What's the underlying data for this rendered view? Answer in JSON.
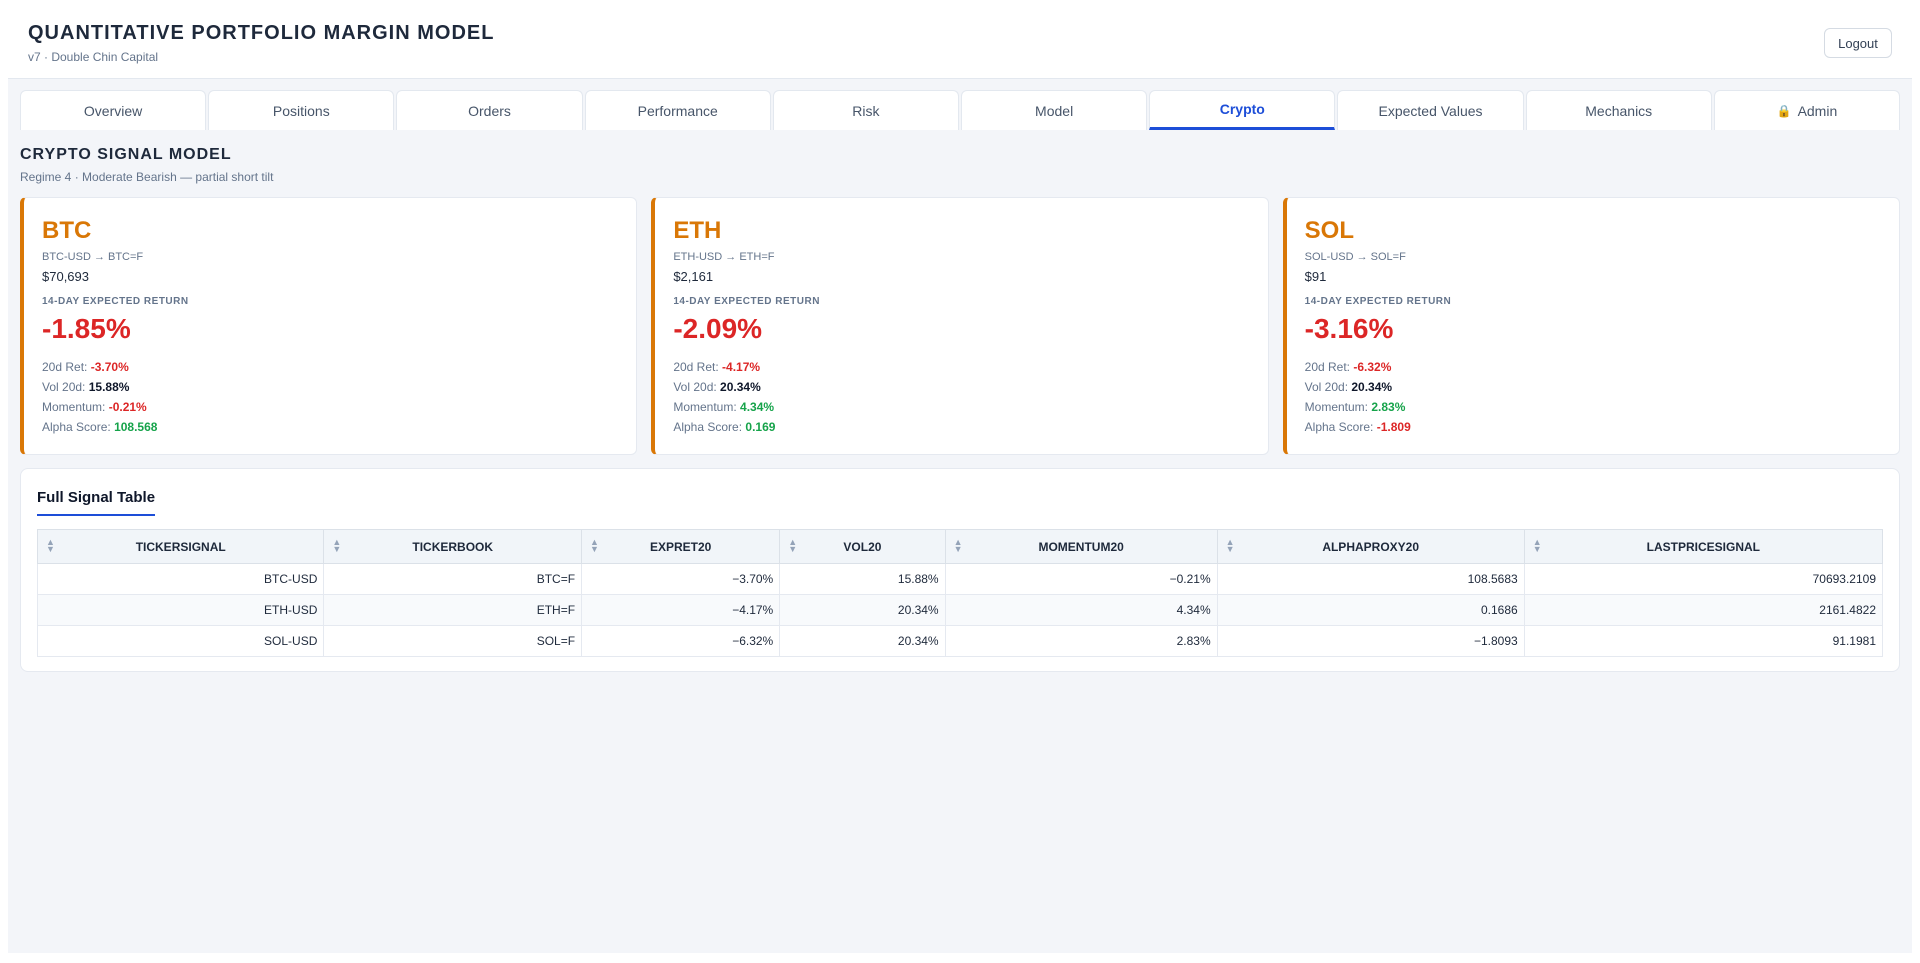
{
  "header": {
    "title": "QUANTITATIVE PORTFOLIO MARGIN MODEL",
    "subtitle": "v7 · Double Chin Capital",
    "logout_label": "Logout"
  },
  "tabs": [
    {
      "label": "Overview"
    },
    {
      "label": "Positions"
    },
    {
      "label": "Orders"
    },
    {
      "label": "Performance"
    },
    {
      "label": "Risk"
    },
    {
      "label": "Model"
    },
    {
      "label": "Crypto",
      "active": true
    },
    {
      "label": "Expected Values"
    },
    {
      "label": "Mechanics"
    },
    {
      "label": "Admin",
      "icon": "lock-icon"
    }
  ],
  "section": {
    "title": "CRYPTO SIGNAL MODEL",
    "subtitle": "Regime 4 · Moderate Bearish — partial short tilt"
  },
  "labels": {
    "expected_return": "14-DAY EXPECTED RETURN",
    "ret20": "20d Ret:",
    "vol20": "Vol 20d:",
    "momentum": "Momentum:",
    "alpha": "Alpha Score:"
  },
  "cards": [
    {
      "symbol": "BTC",
      "mapping": "BTC-USD → BTC=F",
      "price": "$70,693",
      "expected_return": "-1.85%",
      "ret20": "-3.70%",
      "vol20": "15.88%",
      "momentum": "-0.21%",
      "alpha": "108.568"
    },
    {
      "symbol": "ETH",
      "mapping": "ETH-USD → ETH=F",
      "price": "$2,161",
      "expected_return": "-2.09%",
      "ret20": "-4.17%",
      "vol20": "20.34%",
      "momentum": "4.34%",
      "alpha": "0.169"
    },
    {
      "symbol": "SOL",
      "mapping": "SOL-USD → SOL=F",
      "price": "$91",
      "expected_return": "-3.16%",
      "ret20": "-6.32%",
      "vol20": "20.34%",
      "momentum": "2.83%",
      "alpha": "-1.809"
    }
  ],
  "table": {
    "tab_label": "Full Signal Table",
    "columns": [
      "TICKERSIGNAL",
      "TICKERBOOK",
      "EXPRET20",
      "VOL20",
      "MOMENTUM20",
      "ALPHAPROXY20",
      "LASTPRICESIGNAL"
    ],
    "rows": [
      [
        "BTC-USD",
        "BTC=F",
        "−3.70%",
        "15.88%",
        "−0.21%",
        "108.5683",
        "70693.2109"
      ],
      [
        "ETH-USD",
        "ETH=F",
        "−4.17%",
        "20.34%",
        "4.34%",
        "0.1686",
        "2161.4822"
      ],
      [
        "SOL-USD",
        "SOL=F",
        "−6.32%",
        "20.34%",
        "2.83%",
        "−1.8093",
        "91.1981"
      ]
    ]
  },
  "colors": {
    "accent": "#1d4ed8",
    "crypto": "#d97706",
    "negative": "#dc2626",
    "positive": "#16a34a"
  }
}
